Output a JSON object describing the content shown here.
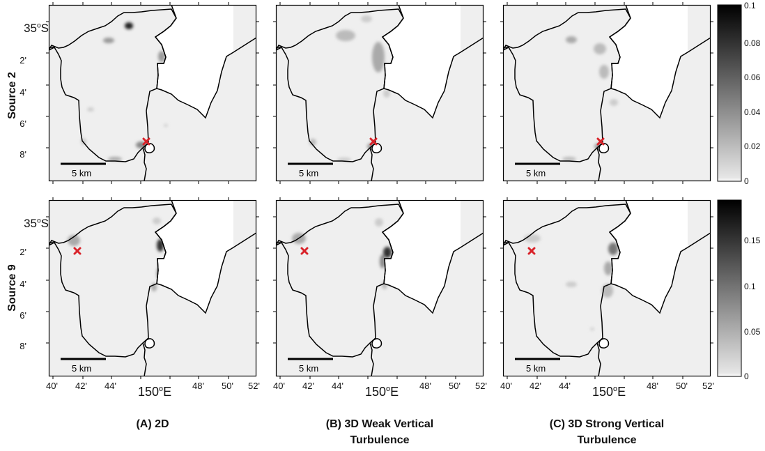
{
  "rows": [
    {
      "label": "Source 2",
      "source_marker": "middle"
    },
    {
      "label": "Source 9",
      "source_marker": "west"
    }
  ],
  "lat_labels": {
    "top_deg": "35",
    "top_sup": "o",
    "top_suffix": "S",
    "minutes": [
      "2'",
      "4'",
      "6'",
      "8'"
    ]
  },
  "lon_labels": {
    "minutes_left": [
      "40'",
      "42'",
      "44'"
    ],
    "center_deg": "150",
    "center_sup": "o",
    "center_suffix": "E",
    "minutes_right": [
      "48'",
      "50'",
      "52'"
    ]
  },
  "scale_bar_label": "5 km",
  "captions": [
    {
      "line1": "(A) 2D",
      "line2": ""
    },
    {
      "line1": "(B) 3D Weak Vertical",
      "line2": "Turbulence"
    },
    {
      "line1": "(C) 3D Strong Vertical",
      "line2": "Turbulence"
    }
  ],
  "colorbars": [
    {
      "ticks": [
        "0.1",
        "0.08",
        "0.06",
        "0.04",
        "0.02",
        "0"
      ],
      "min": 0,
      "max": 0.1
    },
    {
      "ticks": [
        "0.15",
        "0.1",
        "0.05",
        "0"
      ],
      "min": 0,
      "max": 0.19
    }
  ],
  "colors": {
    "water": "#efefef",
    "land": "#ffffff",
    "coast": "#000000",
    "source_marker": "#d9232a"
  }
}
